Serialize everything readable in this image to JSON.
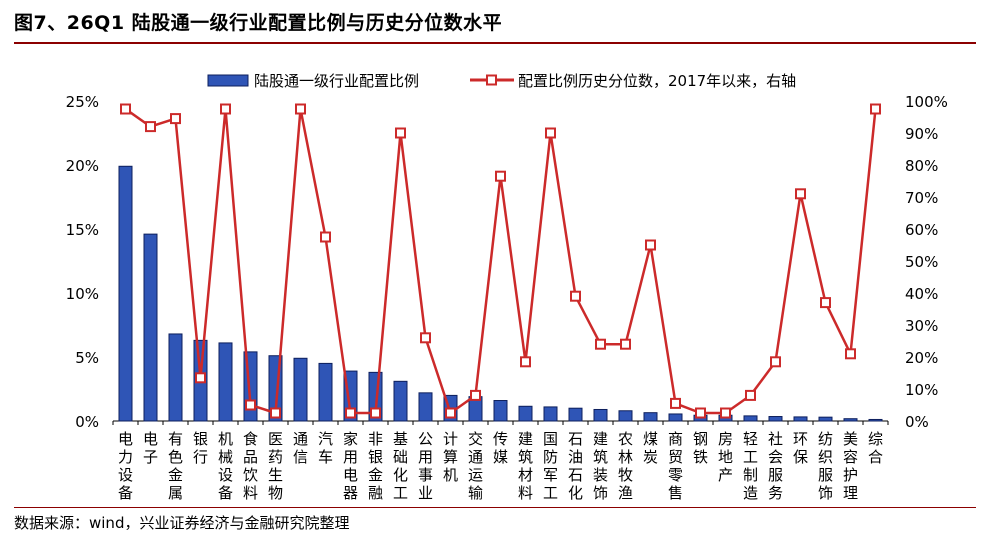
{
  "header": {
    "title": "图7、26Q1 陆股通一级行业配置比例与历史分位数水平"
  },
  "footer": {
    "source": "数据来源：wind，兴业证券经济与金融研究院整理"
  },
  "colors": {
    "bar": "#2f55b6",
    "bar_edge": "#0d1f5c",
    "line": "#cc2a2a",
    "marker_fill": "#ffffff",
    "rule": "#8b0000"
  },
  "chart_data": {
    "type": "bar+line",
    "categories": [
      "电力设备",
      "电子",
      "有色金属",
      "银行",
      "机械设备",
      "食品饮料",
      "医药生物",
      "通信",
      "汽车",
      "家用电器",
      "非银金融",
      "基础化工",
      "公用事业",
      "计算机",
      "交通运输",
      "传媒",
      "建筑材料",
      "国防军工",
      "石油石化",
      "建筑装饰",
      "农林牧渔",
      "煤炭",
      "商贸零售",
      "钢铁",
      "房地产",
      "轻工制造",
      "社会服务",
      "环保",
      "纺织服饰",
      "美容护理",
      "综合"
    ],
    "series": [
      {
        "name": "陆股通一级行业配置比例",
        "type": "bar",
        "axis": "left",
        "values": [
          19.9,
          14.6,
          6.8,
          6.3,
          6.1,
          5.4,
          5.1,
          4.9,
          4.5,
          3.9,
          3.8,
          3.1,
          2.2,
          2.0,
          1.9,
          1.6,
          1.15,
          1.1,
          1.0,
          0.9,
          0.8,
          0.65,
          0.55,
          0.45,
          0.45,
          0.4,
          0.35,
          0.32,
          0.3,
          0.18,
          0.12
        ]
      },
      {
        "name": "配置比例历史分位数，2017年以来，右轴",
        "type": "line",
        "axis": "right",
        "values": [
          97.5,
          92,
          94.5,
          13.5,
          97.5,
          5,
          2.5,
          97.5,
          57.5,
          2.5,
          2.5,
          90,
          26,
          2.5,
          8,
          76.5,
          18.5,
          90,
          39,
          24,
          24,
          55,
          5.5,
          2.5,
          2.5,
          8,
          18.5,
          71,
          37,
          21,
          97.5
        ]
      }
    ],
    "left_axis": {
      "min": 0,
      "max": 25,
      "ticks": [
        "0%",
        "5%",
        "10%",
        "15%",
        "20%",
        "25%"
      ]
    },
    "right_axis": {
      "min": 0,
      "max": 100,
      "ticks": [
        "0%",
        "10%",
        "20%",
        "30%",
        "40%",
        "50%",
        "60%",
        "70%",
        "80%",
        "90%",
        "100%"
      ]
    },
    "legend": [
      "陆股通一级行业配置比例",
      "配置比例历史分位数，2017年以来，右轴"
    ]
  }
}
